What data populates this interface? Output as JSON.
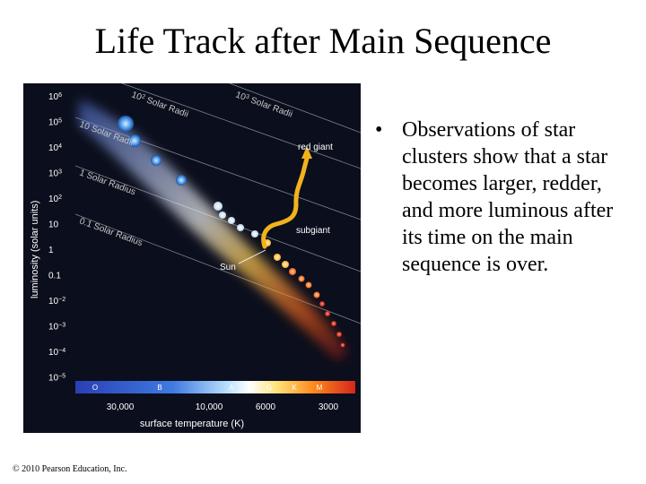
{
  "slide": {
    "title": "Life Track after Main Sequence",
    "bullet": "Observations of star clusters show that a star becomes larger, redder, and more luminous after its time on the main sequence is over.",
    "credit": "© 2010 Pearson Education, Inc."
  },
  "diagram": {
    "y_axis_label": "luminosity (solar units)",
    "y_ticks": [
      {
        "base": "10",
        "exp": "6"
      },
      {
        "base": "10",
        "exp": "5"
      },
      {
        "base": "10",
        "exp": "4"
      },
      {
        "base": "10",
        "exp": "3"
      },
      {
        "base": "10",
        "exp": "2"
      },
      {
        "base": "10",
        "exp": ""
      },
      {
        "base": "1",
        "exp": ""
      },
      {
        "base": "0.1",
        "exp": ""
      },
      {
        "base": "10",
        "exp": "−2"
      },
      {
        "base": "10",
        "exp": "−3"
      },
      {
        "base": "10",
        "exp": "−4"
      },
      {
        "base": "10",
        "exp": "−5"
      }
    ],
    "x_axis_label": "surface temperature (K)",
    "x_ticks": [
      "30,000",
      "10,000",
      "6000",
      "3000"
    ],
    "spectral_classes": [
      "O",
      "B",
      "A",
      "F",
      "G",
      "K",
      "M"
    ],
    "radius_labels": [
      {
        "base": "10",
        "exp": "2",
        "text": " Solar Radii"
      },
      {
        "base": "10",
        "exp": "3",
        "text": " Solar Radii"
      },
      {
        "base": "10",
        "exp": "",
        "text": " Solar Radii"
      },
      {
        "base": "1",
        "exp": "",
        "text": " Solar Radius"
      },
      {
        "base": "0.1",
        "exp": "",
        "text": " Solar Radius"
      }
    ],
    "annotations": {
      "red_giant": "red giant",
      "subgiant": "subgiant",
      "sun": "Sun"
    },
    "colors": {
      "background": "#0b0e1c",
      "track": "#f2b21c",
      "spectral_bar_start": "#2b46c8",
      "spectral_bar_end": "#d62a1a"
    }
  }
}
